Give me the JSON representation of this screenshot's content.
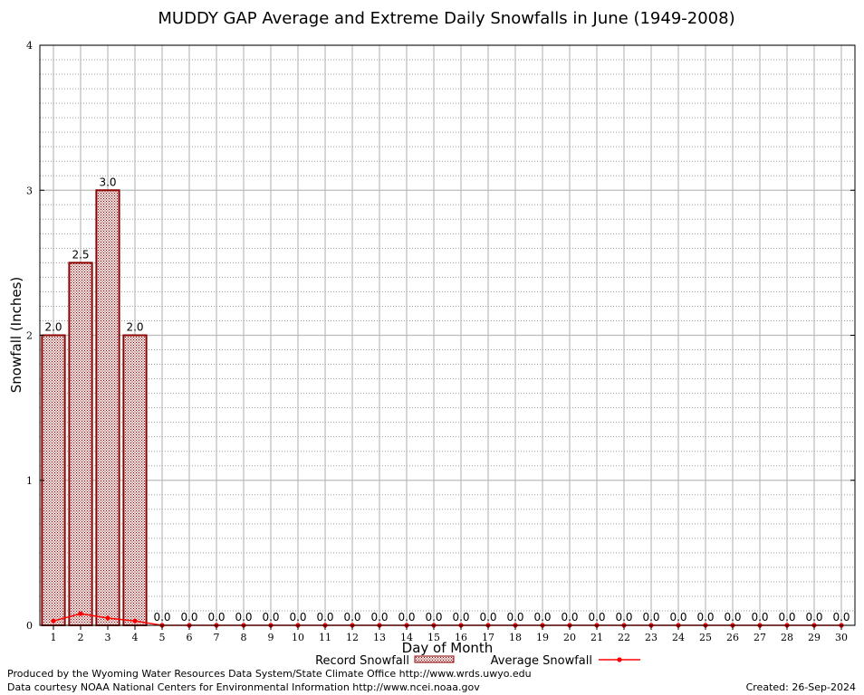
{
  "chart_data": {
    "type": "bar",
    "title": "MUDDY GAP Average and Extreme Daily Snowfalls in June (1949-2008)",
    "xlabel": "Day of Month",
    "ylabel": "Snowfall (Inches)",
    "ylim": [
      0,
      4
    ],
    "yticks": [
      "0",
      "1",
      "2",
      "3",
      "4"
    ],
    "categories": [
      "1",
      "2",
      "3",
      "4",
      "5",
      "6",
      "7",
      "8",
      "9",
      "10",
      "11",
      "12",
      "13",
      "14",
      "15",
      "16",
      "17",
      "18",
      "19",
      "20",
      "21",
      "22",
      "23",
      "24",
      "25",
      "26",
      "27",
      "28",
      "29",
      "30"
    ],
    "grid": true,
    "legend_position": "bottom",
    "series": [
      {
        "name": "Record Snowfall",
        "kind": "bar",
        "color": "#8b0000",
        "values": [
          2.0,
          2.5,
          3.0,
          2.0,
          0.0,
          0.0,
          0.0,
          0.0,
          0.0,
          0.0,
          0.0,
          0.0,
          0.0,
          0.0,
          0.0,
          0.0,
          0.0,
          0.0,
          0.0,
          0.0,
          0.0,
          0.0,
          0.0,
          0.0,
          0.0,
          0.0,
          0.0,
          0.0,
          0.0,
          0.0
        ],
        "labels": [
          "2.0",
          "2.5",
          "3.0",
          "2.0",
          "0.0",
          "0.0",
          "0.0",
          "0.0",
          "0.0",
          "0.0",
          "0.0",
          "0.0",
          "0.0",
          "0.0",
          "0.0",
          "0.0",
          "0.0",
          "0.0",
          "0.0",
          "0.0",
          "0.0",
          "0.0",
          "0.0",
          "0.0",
          "0.0",
          "0.0",
          "0.0",
          "0.0",
          "0.0",
          "0.0"
        ]
      },
      {
        "name": "Average Snowfall",
        "kind": "line",
        "color": "#ff0000",
        "values": [
          0.03,
          0.08,
          0.05,
          0.03,
          0.0,
          0.0,
          0.0,
          0.0,
          0.0,
          0.0,
          0.0,
          0.0,
          0.0,
          0.0,
          0.0,
          0.0,
          0.0,
          0.0,
          0.0,
          0.0,
          0.0,
          0.0,
          0.0,
          0.0,
          0.0,
          0.0,
          0.0,
          0.0,
          0.0,
          0.0
        ]
      }
    ]
  },
  "footer": {
    "line1": "Produced by the Wyoming Water Resources Data System/State Climate Office http://www.wrds.uwyo.edu",
    "line2": "Data courtesy NOAA National Centers for Environmental Information http://www.ncei.noaa.gov",
    "created": "Created:  26-Sep-2024"
  }
}
